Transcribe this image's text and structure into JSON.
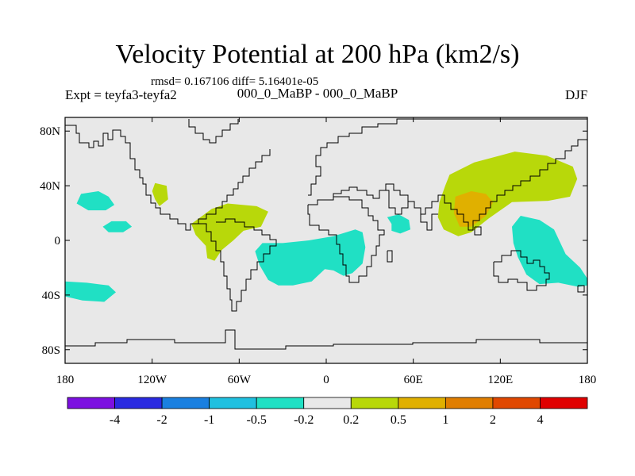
{
  "header": {
    "title": "Velocity Potential at 200 hPa (km2/s)",
    "stats": "rmsd= 0.167106 diff= 5.16401e-05",
    "experiment": "Expt = teyfa3-teyfa2",
    "cases": "000_0_MaBP - 000_0_MaBP",
    "season": "DJF"
  },
  "chart_data": {
    "type": "heatmap",
    "title": "Velocity Potential at 200 hPa (km2/s)",
    "projection": "cylindrical equidistant",
    "xlabel": "",
    "ylabel": "",
    "xlim": [
      -180,
      180
    ],
    "ylim": [
      -90,
      90
    ],
    "x_ticks": [
      {
        "value": -180,
        "label": "180"
      },
      {
        "value": -120,
        "label": "120W"
      },
      {
        "value": -60,
        "label": "60W"
      },
      {
        "value": 0,
        "label": "0"
      },
      {
        "value": 60,
        "label": "60E"
      },
      {
        "value": 120,
        "label": "120E"
      },
      {
        "value": 180,
        "label": "180"
      }
    ],
    "y_ticks": [
      {
        "value": 80,
        "label": "80N"
      },
      {
        "value": 40,
        "label": "40N"
      },
      {
        "value": 0,
        "label": "0"
      },
      {
        "value": -40,
        "label": "40S"
      },
      {
        "value": -80,
        "label": "80S"
      }
    ],
    "colorbar": {
      "colors": [
        "#7c10e0",
        "#2a2ae0",
        "#1a80e0",
        "#20c0e0",
        "#20e0c4",
        "#e8e8e8",
        "#b8d80a",
        "#e0b000",
        "#e07e00",
        "#e04800",
        "#e00000"
      ],
      "labels": [
        "-4",
        "-2",
        "-1",
        "-0.5",
        "-0.2",
        "0.2",
        "0.5",
        "1",
        "2",
        "4"
      ]
    },
    "contours": [
      {
        "level": -0.2,
        "color": "#20e0c4",
        "points": [
          [
            -157,
            36
          ],
          [
            -150,
            32
          ],
          [
            -146,
            26
          ],
          [
            -152,
            22
          ],
          [
            -164,
            22
          ],
          [
            -172,
            27
          ],
          [
            -169,
            34
          ]
        ]
      },
      {
        "level": -0.2,
        "color": "#20e0c4",
        "points": [
          [
            -148,
            14
          ],
          [
            -138,
            14
          ],
          [
            -134,
            10
          ],
          [
            -140,
            6
          ],
          [
            -150,
            6
          ],
          [
            -154,
            10
          ]
        ]
      },
      {
        "level": -0.2,
        "color": "#20e0c4",
        "points": [
          [
            -180,
            -30
          ],
          [
            -165,
            -31
          ],
          [
            -150,
            -33
          ],
          [
            -145,
            -38
          ],
          [
            -153,
            -45
          ],
          [
            -168,
            -44
          ],
          [
            -180,
            -41
          ]
        ]
      },
      {
        "level": -0.2,
        "color": "#20e0c4",
        "points": [
          [
            -44,
            -2
          ],
          [
            -30,
            -2
          ],
          [
            -12,
            0
          ],
          [
            5,
            3
          ],
          [
            20,
            8
          ],
          [
            25,
            6
          ],
          [
            27,
            -5
          ],
          [
            25,
            -17
          ],
          [
            18,
            -24
          ],
          [
            12,
            -26
          ],
          [
            5,
            -22
          ],
          [
            -1,
            -21
          ],
          [
            -10,
            -30
          ],
          [
            -23,
            -33
          ],
          [
            -33,
            -33
          ],
          [
            -40,
            -29
          ],
          [
            -46,
            -18
          ],
          [
            -49,
            -8
          ]
        ]
      },
      {
        "level": -0.2,
        "color": "#20e0c4",
        "points": [
          [
            42,
            17
          ],
          [
            50,
            19
          ],
          [
            57,
            15
          ],
          [
            58,
            8
          ],
          [
            51,
            5
          ],
          [
            45,
            7
          ],
          [
            45,
            12
          ]
        ]
      },
      {
        "level": -0.2,
        "color": "#20e0c4",
        "points": [
          [
            134,
            18
          ],
          [
            147,
            15
          ],
          [
            157,
            8
          ],
          [
            165,
            -10
          ],
          [
            175,
            -20
          ],
          [
            180,
            -28
          ],
          [
            180,
            -33
          ],
          [
            174,
            -34
          ],
          [
            160,
            -31
          ],
          [
            147,
            -32
          ],
          [
            138,
            -25
          ],
          [
            132,
            -12
          ],
          [
            129,
            -2
          ],
          [
            128,
            10
          ]
        ]
      },
      {
        "level": 0.2,
        "color": "#b8d80a",
        "points": [
          [
            -118,
            42
          ],
          [
            -110,
            40
          ],
          [
            -109,
            30
          ],
          [
            -115,
            25
          ],
          [
            -118,
            30
          ],
          [
            -120,
            36
          ]
        ]
      },
      {
        "level": 0.2,
        "color": "#b8d80a",
        "points": [
          [
            -79,
            23
          ],
          [
            -68,
            27
          ],
          [
            -48,
            25
          ],
          [
            -40,
            21
          ],
          [
            -45,
            10
          ],
          [
            -57,
            7
          ],
          [
            -64,
            0
          ],
          [
            -72,
            -7
          ],
          [
            -77,
            -15
          ],
          [
            -82,
            -13
          ],
          [
            -83,
            -4
          ],
          [
            -90,
            4
          ],
          [
            -93,
            12
          ]
        ]
      },
      {
        "level": 0.2,
        "color": "#b8d80a",
        "points": [
          [
            85,
            48
          ],
          [
            102,
            57
          ],
          [
            130,
            65
          ],
          [
            152,
            62
          ],
          [
            170,
            54
          ],
          [
            173,
            45
          ],
          [
            168,
            32
          ],
          [
            153,
            29
          ],
          [
            128,
            28
          ],
          [
            112,
            16
          ],
          [
            100,
            6
          ],
          [
            91,
            3
          ],
          [
            81,
            8
          ],
          [
            77,
            17
          ],
          [
            78,
            28
          ],
          [
            82,
            40
          ]
        ]
      },
      {
        "level": 0.5,
        "color": "#e0b000",
        "points": [
          [
            89,
            32
          ],
          [
            100,
            36
          ],
          [
            110,
            34
          ],
          [
            115,
            28
          ],
          [
            110,
            18
          ],
          [
            100,
            10
          ],
          [
            92,
            10
          ],
          [
            88,
            20
          ]
        ]
      }
    ]
  }
}
